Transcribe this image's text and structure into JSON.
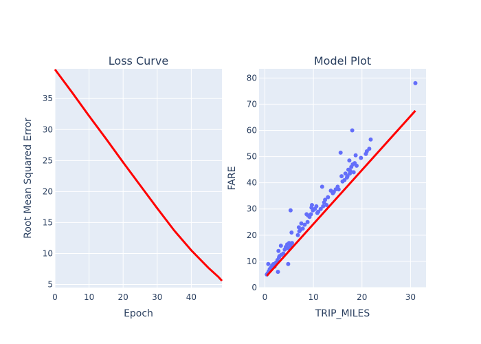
{
  "chart_data": [
    {
      "type": "line",
      "title": "Loss Curve",
      "xlabel": "Epoch",
      "ylabel": "Root Mean Squared Error",
      "xlim": [
        0,
        49
      ],
      "ylim": [
        4.5,
        39.8
      ],
      "xticks": [
        0,
        10,
        20,
        30,
        40
      ],
      "yticks": [
        5,
        10,
        15,
        20,
        25,
        30,
        35
      ],
      "grid": true,
      "line_color": "#ff0000",
      "x": [
        0,
        5,
        10,
        15,
        20,
        25,
        30,
        35,
        40,
        45,
        48,
        49
      ],
      "y": [
        39.7,
        36.0,
        32.2,
        28.5,
        24.7,
        21.0,
        17.3,
        13.7,
        10.5,
        7.7,
        6.2,
        5.6
      ]
    },
    {
      "type": "scatter",
      "title": "Model Plot",
      "xlabel": "TRIP_MILES",
      "ylabel": "FARE",
      "xlim": [
        -1.2,
        33.2
      ],
      "ylim": [
        0,
        83.5
      ],
      "xticks": [
        0,
        10,
        20,
        30
      ],
      "yticks": [
        0,
        10,
        20,
        30,
        40,
        50,
        60,
        70,
        80
      ],
      "grid": true,
      "marker_color": "#636efa",
      "line_color": "#ff0000",
      "points": [
        [
          0.4,
          5.0
        ],
        [
          0.6,
          5.5
        ],
        [
          0.8,
          6.2
        ],
        [
          1.0,
          7.0
        ],
        [
          1.2,
          7.5
        ],
        [
          0.7,
          9.0
        ],
        [
          1.5,
          8.5
        ],
        [
          1.8,
          9.0
        ],
        [
          2.0,
          8.0
        ],
        [
          2.3,
          9.5
        ],
        [
          2.6,
          10.5
        ],
        [
          2.9,
          11.5
        ],
        [
          3.0,
          12.0
        ],
        [
          3.4,
          12.5
        ],
        [
          2.8,
          14.0
        ],
        [
          3.3,
          16.0
        ],
        [
          2.7,
          6.0
        ],
        [
          3.8,
          13.0
        ],
        [
          4.1,
          14.5
        ],
        [
          4.3,
          15.5
        ],
        [
          4.6,
          16.5
        ],
        [
          5.0,
          17.0
        ],
        [
          4.8,
          15.0
        ],
        [
          5.3,
          16.0
        ],
        [
          5.6,
          17.0
        ],
        [
          4.8,
          9.0
        ],
        [
          5.5,
          21.0
        ],
        [
          5.3,
          29.5
        ],
        [
          6.8,
          20.0
        ],
        [
          7.1,
          21.5
        ],
        [
          7.0,
          23.0
        ],
        [
          7.3,
          22.0
        ],
        [
          7.5,
          24.5
        ],
        [
          7.8,
          22.5
        ],
        [
          8.2,
          24.0
        ],
        [
          8.6,
          28.0
        ],
        [
          8.9,
          27.5
        ],
        [
          8.8,
          25.0
        ],
        [
          9.2,
          27.0
        ],
        [
          9.5,
          28.0
        ],
        [
          9.6,
          30.5
        ],
        [
          9.7,
          31.5
        ],
        [
          9.9,
          29.5
        ],
        [
          10.3,
          30.0
        ],
        [
          10.6,
          31.0
        ],
        [
          10.8,
          28.5
        ],
        [
          11.0,
          29.0
        ],
        [
          11.5,
          30.0
        ],
        [
          11.8,
          38.5
        ],
        [
          12.0,
          31.0
        ],
        [
          12.2,
          32.5
        ],
        [
          12.4,
          33.5
        ],
        [
          12.7,
          31.5
        ],
        [
          13.0,
          34.5
        ],
        [
          13.6,
          37.0
        ],
        [
          14.0,
          36.0
        ],
        [
          14.2,
          36.5
        ],
        [
          14.6,
          37.5
        ],
        [
          15.0,
          38.5
        ],
        [
          15.2,
          37.5
        ],
        [
          15.6,
          51.5
        ],
        [
          15.8,
          42.5
        ],
        [
          16.0,
          40.5
        ],
        [
          16.4,
          41.0
        ],
        [
          16.6,
          43.5
        ],
        [
          16.9,
          42.0
        ],
        [
          17.2,
          45.0
        ],
        [
          17.4,
          48.5
        ],
        [
          17.6,
          44.5
        ],
        [
          17.8,
          46.0
        ],
        [
          18.0,
          60.0
        ],
        [
          18.1,
          47.0
        ],
        [
          18.3,
          44.0
        ],
        [
          18.5,
          47.5
        ],
        [
          18.7,
          50.5
        ],
        [
          18.9,
          46.5
        ],
        [
          17.0,
          42.5
        ],
        [
          17.5,
          43.5
        ],
        [
          19.8,
          49.5
        ],
        [
          20.8,
          51.0
        ],
        [
          21.0,
          52.0
        ],
        [
          21.5,
          53.0
        ],
        [
          21.8,
          56.5
        ],
        [
          31.0,
          78.0
        ]
      ],
      "fit_line": {
        "x": [
          0.4,
          31.0
        ],
        "y": [
          4.5,
          67.5
        ]
      }
    }
  ]
}
